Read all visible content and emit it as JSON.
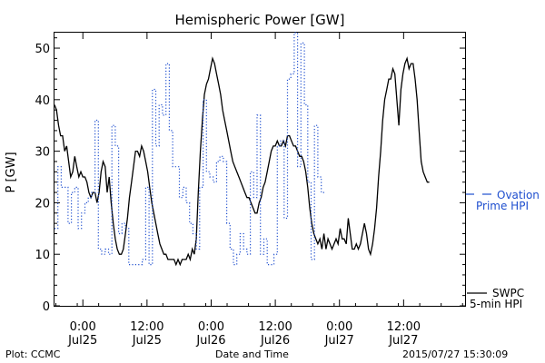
{
  "chart_data": {
    "type": "line",
    "title": "Hemispheric Power [GW]",
    "ylabel": "P [GW]",
    "xlabel": "Date and Time",
    "ylim": [
      0,
      53
    ],
    "yticks": [
      0,
      10,
      20,
      30,
      40,
      50
    ],
    "xlim": [
      -4.2,
      56.6
    ],
    "x_unit": "hours since 2015/07/25 0:00",
    "xticks": [
      {
        "x": 0,
        "line1": "0:00",
        "line2": "Jul25"
      },
      {
        "x": 9.5,
        "line1": "12:00",
        "line2": "Jul25"
      },
      {
        "x": 19,
        "line1": "0:00",
        "line2": "Jul26"
      },
      {
        "x": 28.5,
        "line1": "12:00",
        "line2": "Jul26"
      },
      {
        "x": 38,
        "line1": "0:00",
        "line2": "Jul27"
      },
      {
        "x": 47.5,
        "line1": "12:00",
        "line2": "Jul27"
      }
    ],
    "grid": false,
    "series": [
      {
        "name": "SWPC 5-min HPI",
        "label_lines": [
          "SWPC",
          "5-min HPI"
        ],
        "style": "solid",
        "color": "#000000",
        "points": [
          [
            -4.2,
            39
          ],
          [
            -3.9,
            38
          ],
          [
            -3.6,
            35
          ],
          [
            -3.3,
            33
          ],
          [
            -3.0,
            33
          ],
          [
            -2.7,
            30
          ],
          [
            -2.4,
            31
          ],
          [
            -2.1,
            28
          ],
          [
            -1.8,
            25
          ],
          [
            -1.5,
            26
          ],
          [
            -1.2,
            29
          ],
          [
            -0.9,
            27
          ],
          [
            -0.6,
            25
          ],
          [
            -0.3,
            26
          ],
          [
            0.0,
            25
          ],
          [
            0.3,
            25
          ],
          [
            0.6,
            24
          ],
          [
            0.9,
            22
          ],
          [
            1.2,
            21
          ],
          [
            1.5,
            22
          ],
          [
            1.8,
            22
          ],
          [
            2.1,
            20
          ],
          [
            2.4,
            22
          ],
          [
            2.7,
            26
          ],
          [
            3.0,
            28
          ],
          [
            3.3,
            27
          ],
          [
            3.6,
            22
          ],
          [
            3.9,
            25
          ],
          [
            4.2,
            20
          ],
          [
            4.5,
            16
          ],
          [
            4.8,
            13
          ],
          [
            5.1,
            11
          ],
          [
            5.4,
            10
          ],
          [
            5.7,
            10
          ],
          [
            6.0,
            11
          ],
          [
            6.3,
            14
          ],
          [
            6.6,
            17
          ],
          [
            6.9,
            21
          ],
          [
            7.2,
            24
          ],
          [
            7.5,
            27
          ],
          [
            7.8,
            30
          ],
          [
            8.1,
            30
          ],
          [
            8.4,
            29
          ],
          [
            8.7,
            31
          ],
          [
            9.0,
            30
          ],
          [
            9.3,
            28
          ],
          [
            9.6,
            26
          ],
          [
            9.9,
            23
          ],
          [
            10.2,
            20
          ],
          [
            10.5,
            18
          ],
          [
            10.8,
            16
          ],
          [
            11.1,
            14
          ],
          [
            11.4,
            12
          ],
          [
            11.7,
            11
          ],
          [
            12.0,
            10
          ],
          [
            12.3,
            10
          ],
          [
            12.6,
            9
          ],
          [
            12.9,
            9
          ],
          [
            13.2,
            9
          ],
          [
            13.5,
            9
          ],
          [
            13.8,
            8
          ],
          [
            14.1,
            9
          ],
          [
            14.4,
            8
          ],
          [
            14.7,
            9
          ],
          [
            15.0,
            9
          ],
          [
            15.3,
            9
          ],
          [
            15.6,
            10
          ],
          [
            15.9,
            9
          ],
          [
            16.2,
            11
          ],
          [
            16.5,
            10
          ],
          [
            16.8,
            13
          ],
          [
            17.1,
            22
          ],
          [
            17.4,
            30
          ],
          [
            17.7,
            36
          ],
          [
            18.0,
            41
          ],
          [
            18.3,
            43
          ],
          [
            18.6,
            44
          ],
          [
            18.9,
            46
          ],
          [
            19.2,
            48
          ],
          [
            19.5,
            47
          ],
          [
            19.8,
            45
          ],
          [
            20.1,
            43
          ],
          [
            20.4,
            41
          ],
          [
            20.7,
            38
          ],
          [
            21.0,
            36
          ],
          [
            21.3,
            34
          ],
          [
            21.6,
            32
          ],
          [
            21.9,
            30
          ],
          [
            22.2,
            28
          ],
          [
            22.5,
            27
          ],
          [
            22.8,
            26
          ],
          [
            23.1,
            25
          ],
          [
            23.4,
            24
          ],
          [
            23.7,
            23
          ],
          [
            24.0,
            22
          ],
          [
            24.3,
            21
          ],
          [
            24.6,
            21
          ],
          [
            24.9,
            20
          ],
          [
            25.2,
            19
          ],
          [
            25.5,
            18
          ],
          [
            25.8,
            18
          ],
          [
            26.1,
            20
          ],
          [
            26.4,
            21
          ],
          [
            26.7,
            23
          ],
          [
            27.0,
            24
          ],
          [
            27.3,
            26
          ],
          [
            27.6,
            28
          ],
          [
            27.9,
            30
          ],
          [
            28.2,
            31
          ],
          [
            28.5,
            31
          ],
          [
            28.8,
            32
          ],
          [
            29.1,
            31
          ],
          [
            29.4,
            31
          ],
          [
            29.7,
            32
          ],
          [
            30.0,
            31
          ],
          [
            30.3,
            33
          ],
          [
            30.6,
            33
          ],
          [
            30.9,
            32
          ],
          [
            31.2,
            31
          ],
          [
            31.5,
            31
          ],
          [
            31.8,
            30
          ],
          [
            32.1,
            29
          ],
          [
            32.4,
            29
          ],
          [
            32.7,
            28
          ],
          [
            33.0,
            26
          ],
          [
            33.3,
            23
          ],
          [
            33.6,
            19
          ],
          [
            33.9,
            16
          ],
          [
            34.2,
            14
          ],
          [
            34.5,
            13
          ],
          [
            34.8,
            12
          ],
          [
            35.1,
            13
          ],
          [
            35.4,
            11
          ],
          [
            35.7,
            14
          ],
          [
            36.0,
            11
          ],
          [
            36.3,
            13
          ],
          [
            36.6,
            12
          ],
          [
            36.9,
            11
          ],
          [
            37.2,
            12
          ],
          [
            37.5,
            13
          ],
          [
            37.8,
            12
          ],
          [
            38.1,
            15
          ],
          [
            38.4,
            13
          ],
          [
            38.7,
            13
          ],
          [
            39.0,
            12
          ],
          [
            39.3,
            17
          ],
          [
            39.6,
            14
          ],
          [
            39.9,
            11
          ],
          [
            40.2,
            11
          ],
          [
            40.5,
            12
          ],
          [
            40.8,
            11
          ],
          [
            41.1,
            12
          ],
          [
            41.4,
            14
          ],
          [
            41.7,
            16
          ],
          [
            42.0,
            14
          ],
          [
            42.3,
            11
          ],
          [
            42.6,
            10
          ],
          [
            42.9,
            12
          ],
          [
            43.2,
            15
          ],
          [
            43.5,
            19
          ],
          [
            43.8,
            25
          ],
          [
            44.1,
            30
          ],
          [
            44.4,
            36
          ],
          [
            44.7,
            40
          ],
          [
            45.0,
            42
          ],
          [
            45.3,
            44
          ],
          [
            45.6,
            44
          ],
          [
            45.9,
            46
          ],
          [
            46.2,
            45
          ],
          [
            46.5,
            40
          ],
          [
            46.8,
            35
          ],
          [
            47.1,
            42
          ],
          [
            47.4,
            45
          ],
          [
            47.7,
            47
          ],
          [
            48.0,
            48
          ],
          [
            48.3,
            46
          ],
          [
            48.6,
            47
          ],
          [
            48.9,
            47
          ],
          [
            49.2,
            44
          ],
          [
            49.5,
            40
          ],
          [
            49.8,
            34
          ],
          [
            50.1,
            28
          ],
          [
            50.4,
            26
          ],
          [
            50.7,
            25
          ],
          [
            51.0,
            24
          ],
          [
            51.3,
            24
          ]
        ]
      },
      {
        "name": "Ovation Prime HPI",
        "label_lines": [
          "Ovation",
          "Prime HPI"
        ],
        "style": "dotted-step",
        "color": "#1f4fcf",
        "points": [
          [
            -4.2,
            15
          ],
          [
            -3.7,
            27
          ],
          [
            -3.2,
            23
          ],
          [
            -2.2,
            16
          ],
          [
            -1.7,
            22
          ],
          [
            -1.2,
            23
          ],
          [
            -0.7,
            15
          ],
          [
            -0.2,
            18
          ],
          [
            0.3,
            20
          ],
          [
            0.8,
            21
          ],
          [
            1.3,
            22
          ],
          [
            1.8,
            36
          ],
          [
            2.3,
            11
          ],
          [
            2.8,
            10
          ],
          [
            3.3,
            11
          ],
          [
            3.8,
            10
          ],
          [
            4.3,
            35
          ],
          [
            4.8,
            31
          ],
          [
            5.3,
            14
          ],
          [
            5.8,
            16
          ],
          [
            6.3,
            15
          ],
          [
            6.8,
            8
          ],
          [
            8.8,
            9
          ],
          [
            9.3,
            23
          ],
          [
            9.8,
            8
          ],
          [
            10.3,
            42
          ],
          [
            10.8,
            31
          ],
          [
            11.3,
            39
          ],
          [
            11.8,
            37
          ],
          [
            12.3,
            47
          ],
          [
            12.8,
            34
          ],
          [
            13.3,
            27
          ],
          [
            14.3,
            21
          ],
          [
            14.8,
            23
          ],
          [
            15.3,
            20
          ],
          [
            15.8,
            16
          ],
          [
            16.3,
            14
          ],
          [
            16.8,
            11
          ],
          [
            17.3,
            23
          ],
          [
            17.8,
            40
          ],
          [
            18.3,
            26
          ],
          [
            18.8,
            25
          ],
          [
            19.3,
            24
          ],
          [
            19.8,
            28
          ],
          [
            20.3,
            29
          ],
          [
            20.8,
            28
          ],
          [
            21.3,
            16
          ],
          [
            21.8,
            11
          ],
          [
            22.3,
            8
          ],
          [
            22.8,
            10
          ],
          [
            23.3,
            14
          ],
          [
            23.8,
            11
          ],
          [
            24.3,
            10
          ],
          [
            24.8,
            26
          ],
          [
            25.3,
            21
          ],
          [
            25.8,
            37
          ],
          [
            26.3,
            10
          ],
          [
            26.8,
            13
          ],
          [
            27.3,
            8
          ],
          [
            28.3,
            10
          ],
          [
            28.8,
            31
          ],
          [
            29.3,
            32
          ],
          [
            29.8,
            17
          ],
          [
            30.3,
            44
          ],
          [
            30.8,
            45
          ],
          [
            31.3,
            53
          ],
          [
            31.8,
            27
          ],
          [
            32.3,
            51
          ],
          [
            32.8,
            39
          ],
          [
            33.3,
            24
          ],
          [
            33.8,
            9
          ],
          [
            34.3,
            35
          ],
          [
            34.8,
            25
          ],
          [
            35.3,
            22
          ]
        ]
      }
    ]
  },
  "footer": {
    "plot_credit": "Plot: CCMC",
    "timestamp": "2015/07/27 15:30:09"
  }
}
